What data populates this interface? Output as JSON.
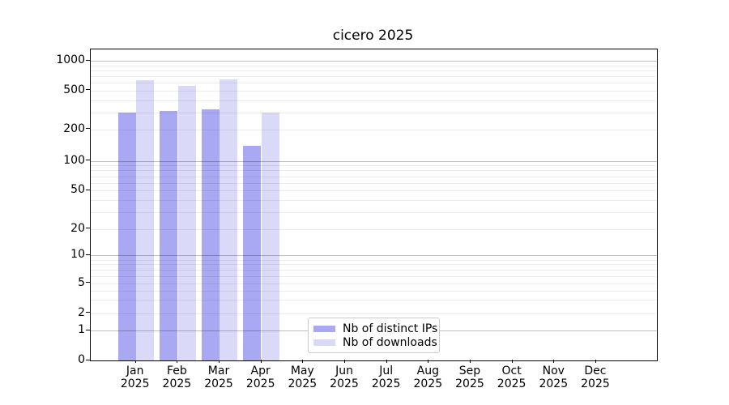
{
  "figure": {
    "title": "cicero 2025"
  },
  "legend": [
    {
      "label": "Nb of distinct IPs",
      "color": "#a9a9f3"
    },
    {
      "label": "Nb of downloads",
      "color": "#dadaf8"
    }
  ],
  "chart_data": {
    "type": "bar",
    "title": "cicero 2025",
    "categories": [
      "Jan 2025",
      "Feb 2025",
      "Mar 2025",
      "Apr 2025",
      "May 2025",
      "Jun 2025",
      "Jul 2025",
      "Aug 2025",
      "Sep 2025",
      "Oct 2025",
      "Nov 2025",
      "Dec 2025"
    ],
    "series": [
      {
        "name": "Nb of distinct IPs",
        "color": "#a9a9f3",
        "values": [
          300,
          310,
          325,
          140,
          0,
          0,
          0,
          0,
          0,
          0,
          0,
          0
        ]
      },
      {
        "name": "Nb of downloads",
        "color": "#dadaf8",
        "values": [
          640,
          560,
          655,
          300,
          0,
          0,
          0,
          0,
          0,
          0,
          0,
          0
        ]
      }
    ],
    "yscale": "symlog",
    "yticks": [
      0,
      1,
      2,
      5,
      10,
      20,
      50,
      100,
      200,
      500,
      1000
    ],
    "ylim": [
      0,
      1150
    ],
    "xlabel": "",
    "ylabel": "",
    "grid": "horizontal major (powers of 10, darker) + minor log lines (lighter), drawn over bars",
    "legend_position": "inside bottom, left of center"
  }
}
